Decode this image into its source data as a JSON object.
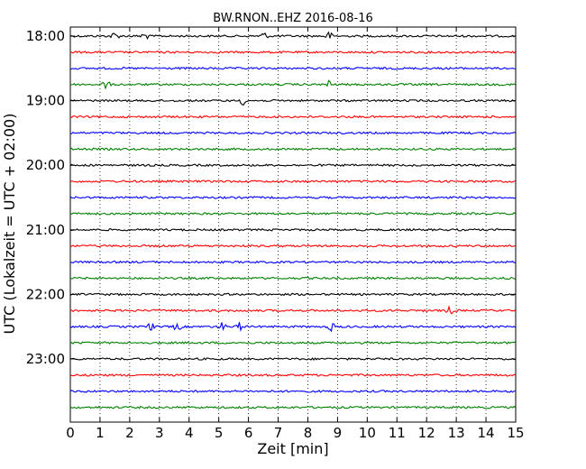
{
  "chart_data": {
    "type": "line",
    "title": "BW.RNON..EHZ 2016-08-16",
    "xlabel": "Zeit  [min]",
    "ylabel": "UTC (Lokalzeit = UTC + 02:00)",
    "xlim": [
      0,
      15
    ],
    "x_ticks": [
      0,
      1,
      2,
      3,
      4,
      5,
      6,
      7,
      8,
      9,
      10,
      11,
      12,
      13,
      14,
      15
    ],
    "y_tick_labels": [
      "18:00",
      "19:00",
      "20:00",
      "21:00",
      "22:00",
      "23:00"
    ],
    "grid": "vertical dotted",
    "color_cycle": [
      "#000000",
      "#ff0000",
      "#0000ff",
      "#008000"
    ],
    "series": [
      {
        "time": "18:00",
        "color": "#000000",
        "events_min": [
          1.5,
          2.5,
          6.5,
          8.7
        ]
      },
      {
        "time": "18:15",
        "color": "#ff0000",
        "events_min": []
      },
      {
        "time": "18:30",
        "color": "#0000ff",
        "events_min": []
      },
      {
        "time": "18:45",
        "color": "#008000",
        "events_min": [
          1.2,
          8.7
        ]
      },
      {
        "time": "19:00",
        "color": "#000000",
        "events_min": [
          5.8
        ]
      },
      {
        "time": "19:15",
        "color": "#ff0000",
        "events_min": []
      },
      {
        "time": "19:30",
        "color": "#0000ff",
        "events_min": []
      },
      {
        "time": "19:45",
        "color": "#008000",
        "events_min": []
      },
      {
        "time": "20:00",
        "color": "#000000",
        "events_min": []
      },
      {
        "time": "20:15",
        "color": "#ff0000",
        "events_min": []
      },
      {
        "time": "20:30",
        "color": "#0000ff",
        "events_min": []
      },
      {
        "time": "20:45",
        "color": "#008000",
        "events_min": []
      },
      {
        "time": "21:00",
        "color": "#000000",
        "events_min": []
      },
      {
        "time": "21:15",
        "color": "#ff0000",
        "events_min": []
      },
      {
        "time": "21:30",
        "color": "#0000ff",
        "events_min": []
      },
      {
        "time": "21:45",
        "color": "#008000",
        "events_min": []
      },
      {
        "time": "22:00",
        "color": "#000000",
        "events_min": []
      },
      {
        "time": "22:15",
        "color": "#ff0000",
        "events_min": [
          12.8
        ]
      },
      {
        "time": "22:30",
        "color": "#0000ff",
        "events_min": [
          2.7,
          3.6,
          5.1,
          5.7,
          8.8
        ]
      },
      {
        "time": "22:45",
        "color": "#008000",
        "events_min": []
      },
      {
        "time": "23:00",
        "color": "#000000",
        "events_min": []
      },
      {
        "time": "23:15",
        "color": "#ff0000",
        "events_min": []
      },
      {
        "time": "23:30",
        "color": "#0000ff",
        "events_min": []
      },
      {
        "time": "23:45",
        "color": "#008000",
        "events_min": []
      }
    ]
  }
}
